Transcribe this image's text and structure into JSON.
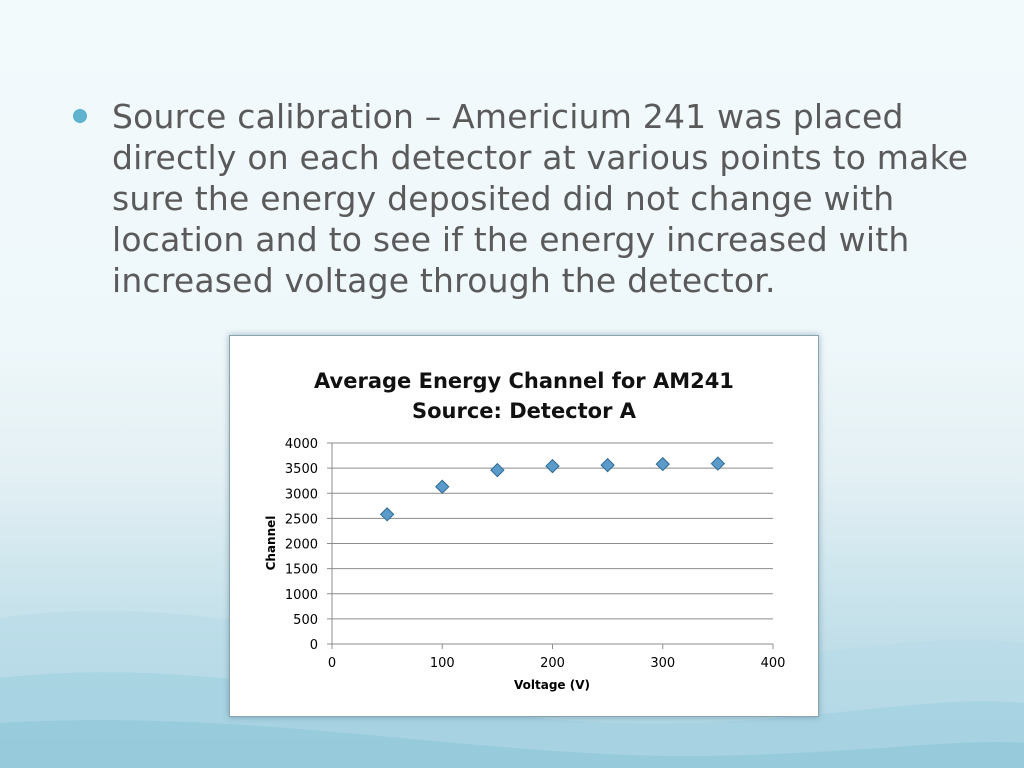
{
  "slide": {
    "bullet_text": "Source calibration – Americium 241 was placed\ndirectly on each detector at various points to make\nsure the energy deposited did not change with\nlocation and to see if  the energy increased with\nincreased voltage through the detector."
  },
  "colors": {
    "bullet": "#5fb3cf",
    "marker_fill": "#5b9bc9",
    "marker_stroke": "#2f6a94",
    "grid": "#8c8c8c"
  },
  "chart_data": {
    "type": "scatter",
    "title": "Average Energy Channel for AM241\nSource: Detector A",
    "xlabel": "Voltage (V)",
    "ylabel": "Channel",
    "xlim": [
      0,
      400
    ],
    "ylim": [
      0,
      4000
    ],
    "x_ticks": [
      0,
      100,
      200,
      300,
      400
    ],
    "y_ticks": [
      0,
      500,
      1000,
      1500,
      2000,
      2500,
      3000,
      3500,
      4000
    ],
    "grid": true,
    "legend": "none",
    "points": [
      {
        "x": 50,
        "y": 2580
      },
      {
        "x": 100,
        "y": 3130
      },
      {
        "x": 150,
        "y": 3460
      },
      {
        "x": 200,
        "y": 3540
      },
      {
        "x": 250,
        "y": 3560
      },
      {
        "x": 300,
        "y": 3580
      },
      {
        "x": 350,
        "y": 3590
      }
    ]
  }
}
